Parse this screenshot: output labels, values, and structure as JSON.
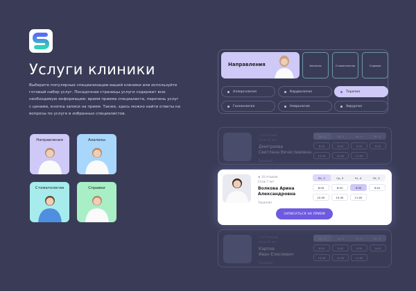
{
  "brand": {
    "logo_icon": "s-logo-icon",
    "accent": "#6d5ae0"
  },
  "header": {
    "title": "Услуги клиники",
    "description": "Выберите популярные специализации вашей клиники или используйте готовый набор услуг. Посадочная страницы услуги содержит всю необходимую информацию: время приема специалиста, перечень услуг с ценами, кнопка записи на прием. Также, здесь можно найти ответы на вопросы по услуге и избранных специалистов."
  },
  "tiles": [
    {
      "label": "Направления",
      "color": "#cfc9f7"
    },
    {
      "label": "Анализы",
      "color": "#a9d6fb"
    },
    {
      "label": "Стоматология",
      "color": "#a7ecec"
    },
    {
      "label": "Справки",
      "color": "#a8efc6"
    }
  ],
  "directions": {
    "main": "Направления",
    "others": [
      "Анализы",
      "Стоматология",
      "Справки"
    ]
  },
  "specialties": [
    {
      "label": "Аллергология",
      "active": false
    },
    {
      "label": "Кардиология",
      "active": false
    },
    {
      "label": "Терапия",
      "active": true
    },
    {
      "label": "Гинекология",
      "active": false
    },
    {
      "label": "Неврология",
      "active": false
    },
    {
      "label": "Хирургия",
      "active": false
    }
  ],
  "doctors": [
    {
      "reviews": "22 отзыва",
      "experience": "Стаж 12 лет",
      "name1": "Дмитриева",
      "name2": "Светлана Вячеславовна",
      "role": "Терапевт",
      "days": [
        "Вт, 2",
        "Ср, 3",
        "Чт, 4",
        "Пт, 5"
      ],
      "slots": [
        "8:00",
        "8:45",
        "9:30",
        "9:45",
        "10:30",
        "10:45",
        "11:00"
      ]
    },
    {
      "reviews": "14 отзывов",
      "experience": "Стаж 7 лет",
      "name1": "Волкова Арина",
      "name2": "Александровна",
      "role": "Терапевт",
      "days": [
        "Вт, 2",
        "Ср, 3",
        "Чт, 4",
        "Пт, 5"
      ],
      "slots": [
        "8:00",
        "8:45",
        "9:30",
        "9:45",
        "10:30",
        "10:45",
        "11:00"
      ],
      "selected_slot": "9:30",
      "button": "ЗАПИСАТЬСЯ НА ПРИЕМ"
    },
    {
      "reviews": "37 отзывов",
      "experience": "Стаж 15 лет",
      "name1": "Карпов",
      "name2": "Иван Елисеевич",
      "role": "Терапевт",
      "days": [
        "Вт, 2",
        "Ср, 3",
        "Чт, 4",
        "Пт, 5"
      ],
      "slots": [
        "8:00",
        "8:45",
        "9:30",
        "9:45",
        "10:30",
        "10:45",
        "11:00"
      ]
    }
  ]
}
